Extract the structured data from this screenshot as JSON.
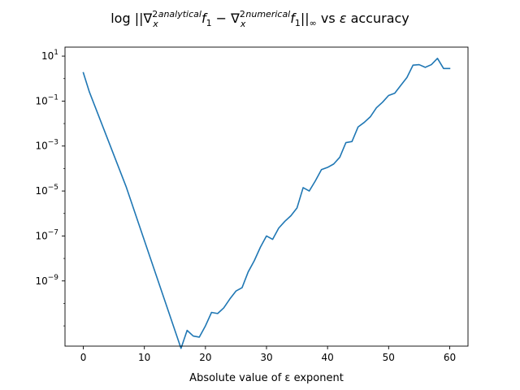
{
  "chart_data": {
    "type": "line",
    "title": "log ||∇²ₓ analytical f₁ − ∇²ₓ numerical f₁||∞ vs  ε accuracy",
    "title_parts": {
      "prefix": "log ||∇",
      "sup2a": "2",
      "subx_a": "x",
      "analytical": "analytical",
      "f1a": "f",
      "sub1a": "1",
      "minus": " − ∇",
      "sup2b": "2",
      "subx_b": "x",
      "numerical": "numerical",
      "f1b": "f",
      "sub1b": "1",
      "norm": "||",
      "inf": "∞",
      "vs": " vs  ",
      "eps": "ε",
      "accuracy": " accuracy"
    },
    "xlabel": "Absolute value of ε exponent",
    "ylabel": "",
    "y_scale": "log",
    "xlim": [
      -3,
      63
    ],
    "ylim_log10": [
      -11.9,
      1.4
    ],
    "x_ticks": [
      0,
      10,
      20,
      30,
      40,
      50,
      60
    ],
    "y_ticks": [
      {
        "exp": 1,
        "label": "10",
        "sup": "1"
      },
      {
        "exp": -1,
        "label": "10",
        "sup": "−1"
      },
      {
        "exp": -3,
        "label": "10",
        "sup": "−3"
      },
      {
        "exp": -5,
        "label": "10",
        "sup": "−5"
      },
      {
        "exp": -7,
        "label": "10",
        "sup": "−7"
      },
      {
        "exp": -9,
        "label": "10",
        "sup": "−9"
      }
    ],
    "line_color": "#1f77b4",
    "series": [
      {
        "x": [
          0,
          1,
          2,
          3,
          4,
          5,
          6,
          7,
          8,
          9,
          10,
          11,
          12,
          13,
          14,
          15,
          16,
          17,
          18,
          19,
          20,
          21,
          22,
          23,
          24,
          25,
          26,
          27,
          28,
          29,
          30,
          31,
          32,
          33,
          34,
          35,
          36,
          37,
          38,
          39,
          40,
          41,
          42,
          43,
          44,
          45,
          46,
          47,
          48,
          49,
          50,
          51,
          52,
          53,
          54,
          55,
          56,
          57,
          58,
          59,
          60
        ],
        "log10_y": [
          0.26,
          -0.6,
          -1.3,
          -2.0,
          -2.7,
          -3.4,
          -4.1,
          -4.8,
          -5.6,
          -6.4,
          -7.2,
          -8.0,
          -8.8,
          -9.6,
          -10.4,
          -11.2,
          -12.0,
          -11.2,
          -11.45,
          -11.5,
          -11.0,
          -10.4,
          -10.45,
          -10.2,
          -9.8,
          -9.45,
          -9.3,
          -8.6,
          -8.1,
          -7.5,
          -7.0,
          -7.15,
          -6.65,
          -6.35,
          -6.1,
          -5.75,
          -4.85,
          -5.0,
          -4.55,
          -4.05,
          -3.95,
          -3.8,
          -3.5,
          -2.85,
          -2.8,
          -2.15,
          -1.95,
          -1.7,
          -1.3,
          -1.05,
          -0.75,
          -0.65,
          -0.3,
          0.05,
          0.6,
          0.62,
          0.5,
          0.62,
          0.9,
          0.45,
          0.45
        ]
      }
    ]
  }
}
